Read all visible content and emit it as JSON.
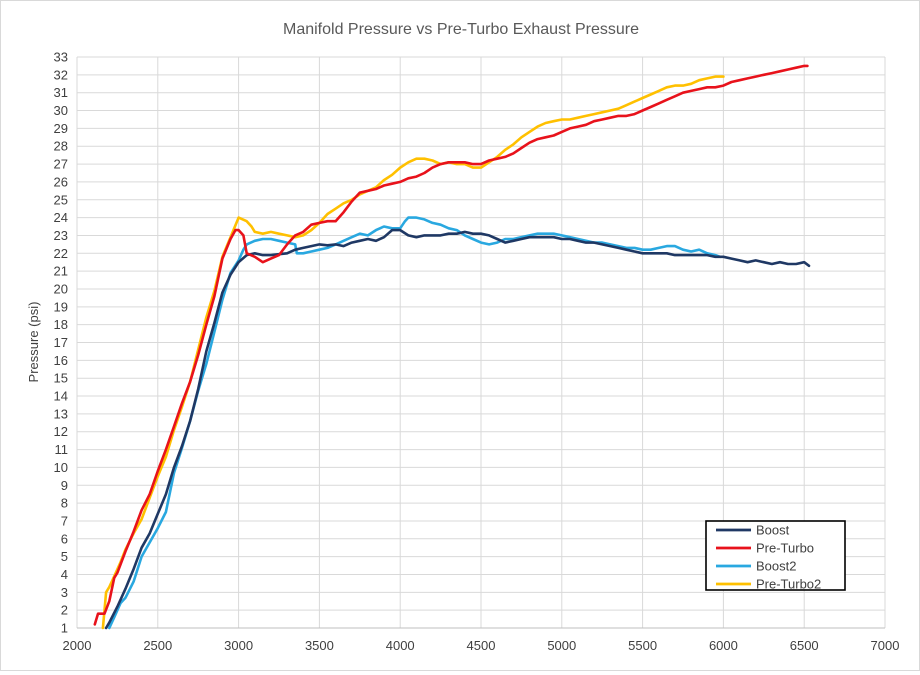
{
  "chart_data": {
    "type": "line",
    "title": "Manifold Pressure vs Pre-Turbo Exhaust Pressure",
    "xlabel": "",
    "ylabel": "Pressure (psi)",
    "xlim": [
      2000,
      7000
    ],
    "ylim": [
      1,
      33
    ],
    "x_ticks": [
      2000,
      2500,
      3000,
      3500,
      4000,
      4500,
      5000,
      5500,
      6000,
      6500,
      7000
    ],
    "y_ticks": [
      1,
      2,
      3,
      4,
      5,
      6,
      7,
      8,
      9,
      10,
      11,
      12,
      13,
      14,
      15,
      16,
      17,
      18,
      19,
      20,
      21,
      22,
      23,
      24,
      25,
      26,
      27,
      28,
      29,
      30,
      31,
      32,
      33
    ],
    "grid": "horizontal and vertical",
    "legend_position": "bottom-right",
    "series": [
      {
        "name": "Boost",
        "color": "#1f3864",
        "x": [
          2180,
          2200,
          2250,
          2300,
          2350,
          2400,
          2450,
          2500,
          2550,
          2600,
          2650,
          2700,
          2750,
          2800,
          2850,
          2900,
          2950,
          3000,
          3050,
          3100,
          3150,
          3200,
          3250,
          3300,
          3350,
          3400,
          3450,
          3500,
          3550,
          3600,
          3650,
          3700,
          3750,
          3800,
          3850,
          3900,
          3950,
          4000,
          4050,
          4100,
          4150,
          4200,
          4250,
          4300,
          4350,
          4400,
          4450,
          4500,
          4550,
          4600,
          4650,
          4700,
          4750,
          4800,
          4850,
          4900,
          4950,
          5000,
          5050,
          5100,
          5150,
          5200,
          5250,
          5300,
          5350,
          5400,
          5450,
          5500,
          5550,
          5600,
          5650,
          5700,
          5750,
          5800,
          5850,
          5900,
          5950,
          6000,
          6050,
          6100,
          6150,
          6200,
          6250,
          6300,
          6350,
          6400,
          6450,
          6500,
          6530
        ],
        "y": [
          1.0,
          1.3,
          2.2,
          3.2,
          4.3,
          5.5,
          6.3,
          7.4,
          8.5,
          10.0,
          11.2,
          12.6,
          14.4,
          16.5,
          18.1,
          19.8,
          20.8,
          21.5,
          21.9,
          22.0,
          21.9,
          21.9,
          21.95,
          22.0,
          22.2,
          22.3,
          22.4,
          22.5,
          22.45,
          22.5,
          22.4,
          22.6,
          22.7,
          22.8,
          22.7,
          22.9,
          23.3,
          23.3,
          23.0,
          22.9,
          23.0,
          23.0,
          23.0,
          23.1,
          23.1,
          23.2,
          23.1,
          23.1,
          23.0,
          22.8,
          22.6,
          22.7,
          22.8,
          22.9,
          22.9,
          22.9,
          22.9,
          22.8,
          22.8,
          22.7,
          22.6,
          22.6,
          22.5,
          22.4,
          22.3,
          22.2,
          22.1,
          22.0,
          22.0,
          22.0,
          22.0,
          21.9,
          21.9,
          21.9,
          21.9,
          21.9,
          21.8,
          21.8,
          21.7,
          21.6,
          21.5,
          21.6,
          21.5,
          21.4,
          21.5,
          21.4,
          21.4,
          21.5,
          21.3
        ]
      },
      {
        "name": "Pre-Turbo",
        "color": "#e8121b",
        "x": [
          2110,
          2130,
          2170,
          2200,
          2230,
          2250,
          2300,
          2350,
          2400,
          2450,
          2500,
          2550,
          2600,
          2650,
          2700,
          2750,
          2800,
          2850,
          2900,
          2950,
          2980,
          3000,
          3030,
          3050,
          3100,
          3150,
          3200,
          3250,
          3300,
          3350,
          3400,
          3450,
          3500,
          3550,
          3600,
          3650,
          3700,
          3750,
          3800,
          3850,
          3900,
          3950,
          4000,
          4050,
          4100,
          4150,
          4200,
          4250,
          4300,
          4350,
          4400,
          4450,
          4500,
          4550,
          4600,
          4650,
          4700,
          4750,
          4800,
          4850,
          4900,
          4950,
          5000,
          5050,
          5100,
          5150,
          5200,
          5250,
          5300,
          5350,
          5400,
          5450,
          5500,
          5550,
          5600,
          5650,
          5700,
          5750,
          5800,
          5850,
          5900,
          5950,
          6000,
          6050,
          6100,
          6150,
          6200,
          6250,
          6300,
          6350,
          6400,
          6450,
          6500,
          6520
        ],
        "y": [
          1.2,
          1.8,
          1.8,
          2.5,
          3.8,
          4.1,
          5.3,
          6.4,
          7.6,
          8.5,
          9.8,
          11.0,
          12.3,
          13.6,
          14.8,
          16.3,
          18.0,
          19.6,
          21.7,
          22.8,
          23.3,
          23.3,
          23.0,
          22.0,
          21.8,
          21.5,
          21.7,
          21.9,
          22.5,
          23.0,
          23.2,
          23.6,
          23.7,
          23.8,
          23.8,
          24.3,
          24.9,
          25.4,
          25.5,
          25.6,
          25.8,
          25.9,
          26.0,
          26.2,
          26.3,
          26.5,
          26.8,
          27.0,
          27.1,
          27.1,
          27.1,
          27.0,
          27.0,
          27.2,
          27.3,
          27.4,
          27.6,
          27.9,
          28.2,
          28.4,
          28.5,
          28.6,
          28.8,
          29.0,
          29.1,
          29.2,
          29.4,
          29.5,
          29.6,
          29.7,
          29.7,
          29.8,
          30.0,
          30.2,
          30.4,
          30.6,
          30.8,
          31.0,
          31.1,
          31.2,
          31.3,
          31.3,
          31.4,
          31.6,
          31.7,
          31.8,
          31.9,
          32.0,
          32.1,
          32.2,
          32.3,
          32.4,
          32.5,
          32.5
        ]
      },
      {
        "name": "Boost2",
        "color": "#29a8e0",
        "x": [
          2200,
          2230,
          2270,
          2300,
          2350,
          2400,
          2450,
          2500,
          2550,
          2600,
          2650,
          2700,
          2750,
          2800,
          2850,
          2900,
          2950,
          3000,
          3030,
          3050,
          3100,
          3150,
          3200,
          3250,
          3300,
          3350,
          3360,
          3400,
          3450,
          3500,
          3550,
          3600,
          3650,
          3700,
          3750,
          3800,
          3850,
          3900,
          3950,
          4000,
          4030,
          4050,
          4100,
          4150,
          4200,
          4250,
          4300,
          4350,
          4400,
          4450,
          4500,
          4550,
          4600,
          4650,
          4700,
          4750,
          4800,
          4850,
          4900,
          4950,
          5000,
          5050,
          5100,
          5150,
          5200,
          5250,
          5300,
          5350,
          5400,
          5450,
          5500,
          5550,
          5600,
          5650,
          5700,
          5750,
          5800,
          5850,
          5900,
          5950,
          5980
        ],
        "y": [
          1.0,
          1.6,
          2.4,
          2.7,
          3.6,
          5.0,
          5.8,
          6.6,
          7.5,
          9.7,
          11.1,
          12.6,
          14.3,
          15.8,
          17.6,
          19.4,
          20.9,
          21.6,
          22.2,
          22.5,
          22.7,
          22.8,
          22.8,
          22.7,
          22.6,
          22.5,
          22.0,
          22.0,
          22.1,
          22.2,
          22.3,
          22.5,
          22.7,
          22.9,
          23.1,
          23.0,
          23.3,
          23.5,
          23.4,
          23.4,
          23.8,
          24.0,
          24.0,
          23.9,
          23.7,
          23.6,
          23.4,
          23.3,
          23.0,
          22.8,
          22.6,
          22.5,
          22.6,
          22.8,
          22.8,
          22.9,
          23.0,
          23.1,
          23.1,
          23.1,
          23.0,
          22.9,
          22.8,
          22.7,
          22.6,
          22.6,
          22.5,
          22.4,
          22.3,
          22.3,
          22.2,
          22.2,
          22.3,
          22.4,
          22.4,
          22.2,
          22.1,
          22.2,
          22.0,
          21.9,
          21.8
        ]
      },
      {
        "name": "Pre-Turbo2",
        "color": "#ffc000",
        "x": [
          2160,
          2180,
          2200,
          2230,
          2270,
          2300,
          2350,
          2400,
          2450,
          2500,
          2550,
          2600,
          2650,
          2700,
          2750,
          2800,
          2850,
          2900,
          2950,
          3000,
          3050,
          3080,
          3100,
          3150,
          3200,
          3250,
          3300,
          3350,
          3400,
          3450,
          3500,
          3550,
          3600,
          3650,
          3700,
          3750,
          3800,
          3850,
          3900,
          3950,
          4000,
          4050,
          4100,
          4150,
          4200,
          4250,
          4300,
          4350,
          4400,
          4450,
          4500,
          4550,
          4600,
          4650,
          4700,
          4750,
          4800,
          4850,
          4900,
          4950,
          5000,
          5050,
          5100,
          5150,
          5200,
          5250,
          5300,
          5350,
          5400,
          5450,
          5500,
          5550,
          5600,
          5650,
          5700,
          5750,
          5800,
          5850,
          5900,
          5950,
          6000
        ],
        "y": [
          1.0,
          3.0,
          3.3,
          3.9,
          4.7,
          5.4,
          6.3,
          7.1,
          8.3,
          9.5,
          10.6,
          12.1,
          13.4,
          14.8,
          16.6,
          18.4,
          19.9,
          21.8,
          22.9,
          24.0,
          23.8,
          23.5,
          23.2,
          23.1,
          23.2,
          23.1,
          23.0,
          22.9,
          23.0,
          23.3,
          23.7,
          24.2,
          24.5,
          24.8,
          25.0,
          25.3,
          25.5,
          25.7,
          26.1,
          26.4,
          26.8,
          27.1,
          27.3,
          27.3,
          27.2,
          27.0,
          27.1,
          27.0,
          27.0,
          26.8,
          26.8,
          27.1,
          27.4,
          27.8,
          28.1,
          28.5,
          28.8,
          29.1,
          29.3,
          29.4,
          29.5,
          29.5,
          29.6,
          29.7,
          29.8,
          29.9,
          30.0,
          30.1,
          30.3,
          30.5,
          30.7,
          30.9,
          31.1,
          31.3,
          31.4,
          31.4,
          31.5,
          31.7,
          31.8,
          31.9,
          31.9
        ]
      }
    ]
  }
}
